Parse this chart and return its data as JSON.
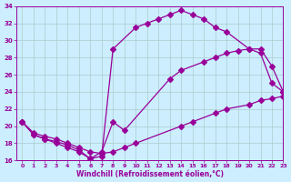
{
  "xlabel": "Windchill (Refroidissement éolien,°C)",
  "background_color": "#cceeff",
  "line_color": "#990099",
  "grid_color": "#aacccc",
  "y1_x": [
    0,
    1,
    2,
    3,
    4,
    5,
    6,
    7,
    8,
    10,
    11,
    12,
    13,
    14,
    15,
    16,
    17,
    18,
    20,
    21,
    22,
    23
  ],
  "y1_y": [
    20.5,
    19.0,
    18.5,
    18.2,
    17.8,
    17.2,
    16.2,
    16.5,
    29.0,
    31.5,
    32.0,
    32.5,
    33.0,
    33.5,
    33.0,
    32.5,
    31.5,
    31.0,
    29.0,
    28.5,
    25.0,
    24.0
  ],
  "y2_x": [
    0,
    1,
    2,
    3,
    4,
    5,
    6,
    7,
    8,
    9,
    13,
    14,
    16,
    17,
    18,
    19,
    20,
    21,
    22,
    23
  ],
  "y2_y": [
    20.5,
    19.0,
    18.5,
    18.0,
    17.5,
    17.0,
    16.2,
    17.0,
    20.5,
    19.5,
    25.5,
    26.5,
    27.5,
    28.0,
    28.5,
    28.8,
    29.0,
    29.0,
    27.0,
    24.0
  ],
  "y3_x": [
    0,
    1,
    2,
    3,
    4,
    5,
    6,
    7,
    8,
    9,
    10,
    14,
    15,
    17,
    18,
    20,
    21,
    22,
    23
  ],
  "y3_y": [
    20.5,
    19.2,
    18.8,
    18.5,
    18.0,
    17.5,
    17.0,
    16.8,
    17.0,
    17.5,
    18.0,
    20.0,
    20.5,
    21.5,
    22.0,
    22.5,
    23.0,
    23.2,
    23.5
  ],
  "ylim": [
    16,
    34
  ],
  "xlim": [
    -0.5,
    23
  ],
  "yticks": [
    16,
    18,
    20,
    22,
    24,
    26,
    28,
    30,
    32,
    34
  ],
  "xticks": [
    0,
    1,
    2,
    3,
    4,
    5,
    6,
    7,
    8,
    9,
    10,
    11,
    12,
    13,
    14,
    15,
    16,
    17,
    18,
    19,
    20,
    21,
    22,
    23
  ],
  "markersize": 3.0,
  "linewidth": 0.9
}
